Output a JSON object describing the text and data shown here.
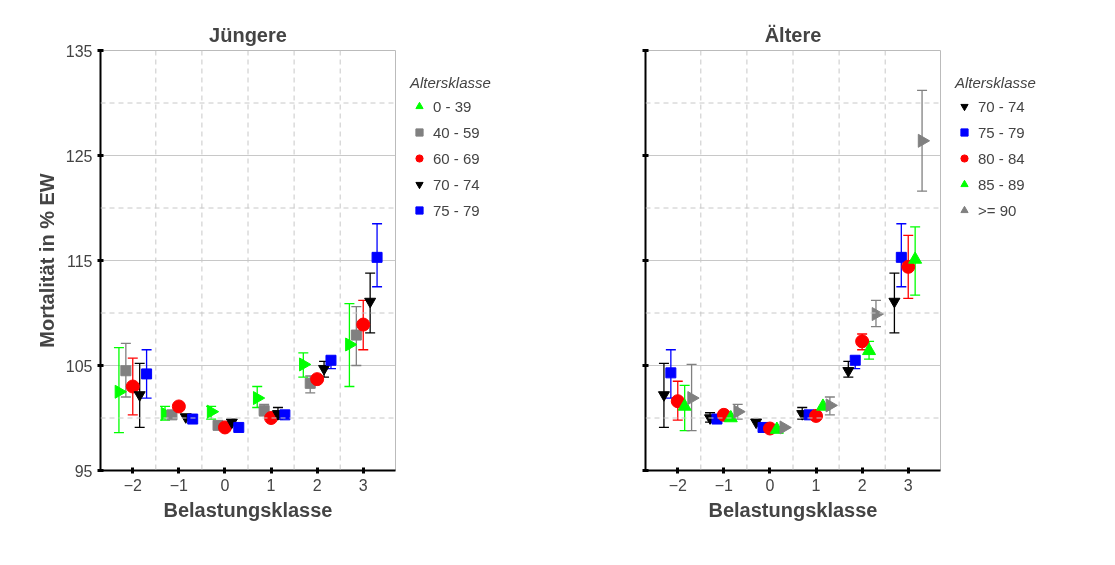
{
  "chart_data": [
    {
      "type": "scatter",
      "title": "Jüngere",
      "xlabel": "Belastungsklasse",
      "ylabel": "Mortalität in % EW",
      "legend_title": "Altersklasse",
      "legend": "right",
      "grid": true,
      "xlim": [
        -2.7,
        3.7
      ],
      "xticks": [
        -2,
        -1,
        0,
        1,
        2,
        3
      ],
      "ylim": [
        95,
        135
      ],
      "yticks": [
        95,
        105,
        115,
        125,
        135
      ],
      "series": [
        {
          "name": "0 - 39",
          "color": "#00ff00",
          "marker": "triangle_right",
          "x": [
            -2.3,
            -1.3,
            -0.3,
            0.7,
            1.7,
            2.7
          ],
          "values": [
            102.5,
            100.4,
            100.6,
            101.9,
            105.1,
            107.0
          ],
          "errors": [
            [
              98.6,
              106.7
            ],
            [
              99.8,
              101.1
            ],
            [
              99.9,
              101.1
            ],
            [
              101.0,
              103.0
            ],
            [
              103.9,
              106.2
            ],
            [
              103.0,
              110.9
            ]
          ]
        },
        {
          "name": "40 - 59",
          "color": "#808080",
          "marker": "square",
          "x": [
            -2.15,
            -1.15,
            -0.15,
            0.85,
            1.85,
            2.85
          ],
          "values": [
            104.5,
            100.3,
            99.3,
            100.7,
            103.3,
            107.9
          ],
          "errors": [
            [
              102.0,
              107.1
            ],
            null,
            null,
            [
              100.2,
              101.3
            ],
            [
              102.4,
              104.0
            ],
            [
              105.0,
              110.6
            ]
          ]
        },
        {
          "name": "60 - 69",
          "color": "#ff0000",
          "marker": "circle",
          "x": [
            -2,
            -1,
            0,
            1,
            2,
            3
          ],
          "values": [
            103.0,
            101.1,
            99.1,
            100.0,
            103.7,
            108.9
          ],
          "errors": [
            [
              100.3,
              105.7
            ],
            null,
            null,
            null,
            null,
            [
              106.5,
              111.2
            ]
          ]
        },
        {
          "name": "70 - 74",
          "color": "#000000",
          "marker": "triangle_down",
          "x": [
            -1.85,
            -0.85,
            0.15,
            1.15,
            2.15,
            3.15
          ],
          "values": [
            102.2,
            100.1,
            99.6,
            100.4,
            104.7,
            111.1
          ],
          "errors": [
            [
              99.1,
              105.2
            ],
            null,
            null,
            [
              99.9,
              101.0
            ],
            [
              103.9,
              105.4
            ],
            [
              108.1,
              113.8
            ]
          ]
        },
        {
          "name": "75 - 79",
          "color": "#0000ff",
          "marker": "square",
          "x": [
            -1.7,
            -0.7,
            0.3,
            1.3,
            2.3,
            3.3
          ],
          "values": [
            104.2,
            99.9,
            99.1,
            100.3,
            105.5,
            115.3
          ],
          "errors": [
            [
              101.9,
              106.5
            ],
            null,
            null,
            null,
            [
              104.7,
              105.8
            ],
            [
              112.5,
              118.5
            ]
          ]
        }
      ]
    },
    {
      "type": "scatter",
      "title": "Ältere",
      "xlabel": "Belastungsklasse",
      "legend_title": "Altersklasse",
      "legend": "right",
      "grid": true,
      "tick_labels": "x",
      "xlim": [
        -2.7,
        3.7
      ],
      "xticks": [
        -2,
        -1,
        0,
        1,
        2,
        3
      ],
      "ylim": [
        95,
        135
      ],
      "yticks": [
        95,
        105,
        115,
        125,
        135
      ],
      "series": [
        {
          "name": "70 - 74",
          "color": "#000000",
          "marker": "triangle_down",
          "x": [
            -2.3,
            -1.3,
            -0.3,
            0.7,
            1.7,
            2.7
          ],
          "values": [
            102.2,
            100.0,
            99.6,
            100.4,
            104.5,
            111.1
          ],
          "errors": [
            [
              99.1,
              105.2
            ],
            [
              99.6,
              100.5
            ],
            null,
            [
              99.9,
              101.0
            ],
            [
              103.9,
              105.4
            ],
            [
              108.1,
              113.8
            ]
          ]
        },
        {
          "name": "75 - 79",
          "color": "#0000ff",
          "marker": "square",
          "x": [
            -2.15,
            -1.15,
            -0.15,
            0.85,
            1.85,
            2.85
          ],
          "values": [
            104.3,
            99.9,
            99.1,
            100.3,
            105.5,
            115.3
          ],
          "errors": [
            [
              101.9,
              106.5
            ],
            null,
            null,
            null,
            [
              104.7,
              105.8
            ],
            [
              112.5,
              118.5
            ]
          ]
        },
        {
          "name": "80 - 84",
          "color": "#ff0000",
          "marker": "circle",
          "x": [
            -2,
            -1,
            0,
            1,
            2,
            3
          ],
          "values": [
            101.6,
            100.3,
            99.0,
            100.2,
            107.3,
            114.4
          ],
          "errors": [
            [
              99.8,
              103.5
            ],
            null,
            null,
            null,
            [
              106.5,
              108.0
            ],
            [
              111.4,
              117.4
            ]
          ]
        },
        {
          "name": "85 - 89",
          "color": "#00ff00",
          "marker": "triangle",
          "x": [
            -1.85,
            -0.85,
            0.15,
            1.15,
            2.15,
            3.15
          ],
          "values": [
            101.1,
            100.0,
            98.9,
            101.1,
            106.4,
            115.1
          ],
          "errors": [
            [
              98.8,
              103.1
            ],
            null,
            null,
            null,
            [
              105.6,
              107.3
            ],
            [
              111.7,
              118.2
            ]
          ]
        },
        {
          "name": ">= 90",
          "color": "#808080",
          "marker": "triangle_right",
          "x": [
            -1.7,
            -0.7,
            0.3,
            1.3,
            2.3,
            3.3
          ],
          "values": [
            101.9,
            100.6,
            99.1,
            101.2,
            109.9,
            126.4
          ],
          "errors": [
            [
              98.8,
              105.1
            ],
            [
              99.9,
              101.3
            ],
            null,
            [
              100.3,
              102.0
            ],
            [
              108.7,
              111.2
            ],
            [
              121.6,
              131.2
            ]
          ]
        }
      ]
    }
  ]
}
